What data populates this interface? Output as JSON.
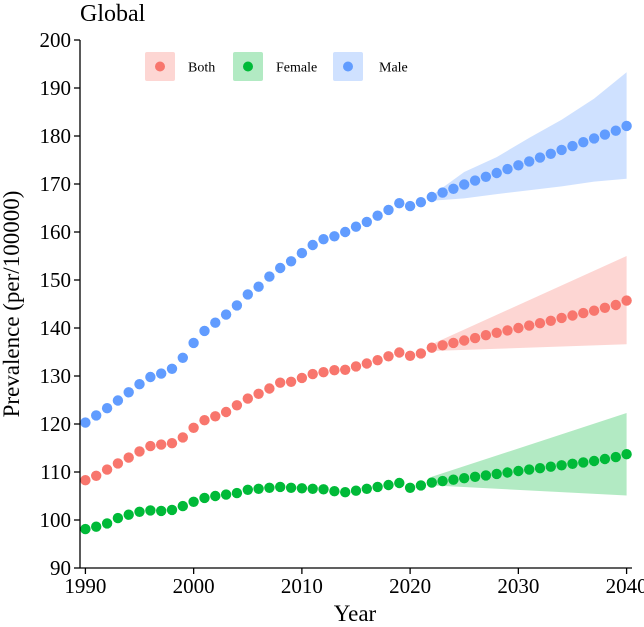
{
  "chart_data": {
    "type": "scatter",
    "title": "Global",
    "xlabel": "Year",
    "ylabel": "Prevalence (per/100000)",
    "xlim": [
      1989.5,
      2040.5
    ],
    "ylim": [
      90,
      200
    ],
    "x_ticks": [
      1990,
      2000,
      2010,
      2020,
      2030,
      2040
    ],
    "y_ticks": [
      90,
      100,
      110,
      120,
      130,
      140,
      150,
      160,
      170,
      180,
      190,
      200
    ],
    "grid": false,
    "legend_position": "top-left",
    "series": [
      {
        "name": "Both",
        "color": "#F8766D",
        "band_color": "#F8766D",
        "x": [
          1990,
          1991,
          1992,
          1993,
          1994,
          1995,
          1996,
          1997,
          1998,
          1999,
          2000,
          2001,
          2002,
          2003,
          2004,
          2005,
          2006,
          2007,
          2008,
          2009,
          2010,
          2011,
          2012,
          2013,
          2014,
          2015,
          2016,
          2017,
          2018,
          2019,
          2020,
          2021,
          2022,
          2023,
          2024,
          2025,
          2026,
          2027,
          2028,
          2029,
          2030,
          2031,
          2032,
          2033,
          2034,
          2035,
          2036,
          2037,
          2038,
          2039,
          2040
        ],
        "values": [
          108.3,
          109.2,
          110.5,
          111.8,
          113.0,
          114.3,
          115.4,
          115.7,
          116.0,
          117.2,
          119.2,
          120.8,
          121.6,
          122.5,
          123.9,
          125.3,
          126.3,
          127.4,
          128.6,
          128.8,
          129.6,
          130.4,
          130.8,
          131.2,
          131.3,
          132.0,
          132.6,
          133.3,
          134.1,
          134.9,
          134.2,
          134.7,
          135.9,
          136.4,
          136.9,
          137.4,
          137.9,
          138.5,
          139.0,
          139.5,
          140.0,
          140.5,
          141.0,
          141.5,
          142.1,
          142.6,
          143.1,
          143.6,
          144.2,
          144.8,
          145.7
        ],
        "band": {
          "x": [
            2022,
            2040
          ],
          "lower": [
            135.2,
            136.6
          ],
          "upper": [
            136.6,
            155.0
          ]
        }
      },
      {
        "name": "Female",
        "color": "#00BA38",
        "band_color": "#00BA38",
        "x": [
          1990,
          1991,
          1992,
          1993,
          1994,
          1995,
          1996,
          1997,
          1998,
          1999,
          2000,
          2001,
          2002,
          2003,
          2004,
          2005,
          2006,
          2007,
          2008,
          2009,
          2010,
          2011,
          2012,
          2013,
          2014,
          2015,
          2016,
          2017,
          2018,
          2019,
          2020,
          2021,
          2022,
          2023,
          2024,
          2025,
          2026,
          2027,
          2028,
          2029,
          2030,
          2031,
          2032,
          2033,
          2034,
          2035,
          2036,
          2037,
          2038,
          2039,
          2040
        ],
        "values": [
          98.1,
          98.6,
          99.3,
          100.4,
          101.1,
          101.7,
          102.0,
          101.9,
          102.1,
          102.9,
          103.8,
          104.6,
          105.0,
          105.3,
          105.6,
          106.3,
          106.5,
          106.7,
          106.9,
          106.7,
          106.6,
          106.5,
          106.4,
          106.0,
          105.8,
          106.1,
          106.5,
          106.9,
          107.3,
          107.7,
          106.7,
          107.2,
          107.8,
          108.1,
          108.4,
          108.7,
          109.0,
          109.3,
          109.6,
          109.9,
          110.2,
          110.5,
          110.8,
          111.1,
          111.4,
          111.7,
          112.0,
          112.3,
          112.7,
          113.1,
          113.7
        ],
        "band": {
          "x": [
            2022,
            2040
          ],
          "lower": [
            107.2,
            105.1
          ],
          "upper": [
            109.0,
            122.3
          ]
        }
      },
      {
        "name": "Male",
        "color": "#619CFF",
        "band_color": "#619CFF",
        "x": [
          1990,
          1991,
          1992,
          1993,
          1994,
          1995,
          1996,
          1997,
          1998,
          1999,
          2000,
          2001,
          2002,
          2003,
          2004,
          2005,
          2006,
          2007,
          2008,
          2009,
          2010,
          2011,
          2012,
          2013,
          2014,
          2015,
          2016,
          2017,
          2018,
          2019,
          2020,
          2021,
          2022,
          2023,
          2024,
          2025,
          2026,
          2027,
          2028,
          2029,
          2030,
          2031,
          2032,
          2033,
          2034,
          2035,
          2036,
          2037,
          2038,
          2039,
          2040
        ],
        "values": [
          120.3,
          121.8,
          123.3,
          124.9,
          126.6,
          128.3,
          129.8,
          130.5,
          131.5,
          133.8,
          136.9,
          139.4,
          141.1,
          142.8,
          144.7,
          147.0,
          148.6,
          150.7,
          152.5,
          153.9,
          155.6,
          157.3,
          158.5,
          159.1,
          160.0,
          161.1,
          162.1,
          163.4,
          164.6,
          166.0,
          165.4,
          166.2,
          167.3,
          168.2,
          169.0,
          169.9,
          170.7,
          171.5,
          172.3,
          173.1,
          173.9,
          174.7,
          175.5,
          176.3,
          177.1,
          177.9,
          178.7,
          179.5,
          180.3,
          181.1,
          182.1
        ],
        "band": {
          "x": [
            2022,
            2025,
            2028,
            2031,
            2034,
            2037,
            2040
          ],
          "lower": [
            166.5,
            167.0,
            167.9,
            168.7,
            169.5,
            170.5,
            171.1
          ],
          "upper": [
            167.6,
            172.5,
            175.6,
            179.6,
            183.4,
            187.8,
            193.3
          ]
        }
      }
    ]
  }
}
